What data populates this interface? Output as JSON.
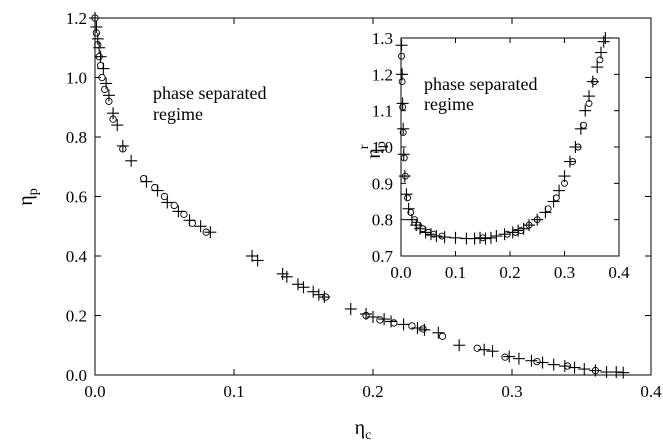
{
  "chart_data": [
    {
      "type": "scatter",
      "xlabel_main": "η",
      "xlabel_sub": "c",
      "ylabel_main": "η",
      "ylabel_sub": "p",
      "xlim": [
        0,
        0.4
      ],
      "ylim": [
        0,
        1.2
      ],
      "xticks": [
        "0.0",
        "0.1",
        "0.2",
        "0.3",
        "0.4"
      ],
      "yticks": [
        "0.0",
        "0.2",
        "0.4",
        "0.6",
        "0.8",
        "1.0",
        "1.2"
      ],
      "annotation_line1": "phase separated",
      "annotation_line2": "regime",
      "series": [
        {
          "marker": "plus",
          "points": [
            [
              0.0,
              1.2
            ],
            [
              0.001,
              1.17
            ],
            [
              0.002,
              1.13
            ],
            [
              0.003,
              1.1
            ],
            [
              0.004,
              1.07
            ],
            [
              0.006,
              1.03
            ],
            [
              0.008,
              0.98
            ],
            [
              0.01,
              0.94
            ],
            [
              0.013,
              0.88
            ],
            [
              0.016,
              0.84
            ],
            [
              0.02,
              0.77
            ],
            [
              0.026,
              0.72
            ],
            [
              0.037,
              0.65
            ],
            [
              0.045,
              0.62
            ],
            [
              0.052,
              0.58
            ],
            [
              0.06,
              0.55
            ],
            [
              0.068,
              0.52
            ],
            [
              0.076,
              0.5
            ],
            [
              0.083,
              0.48
            ],
            [
              0.113,
              0.4
            ],
            [
              0.117,
              0.385
            ],
            [
              0.135,
              0.34
            ],
            [
              0.138,
              0.33
            ],
            [
              0.146,
              0.305
            ],
            [
              0.15,
              0.295
            ],
            [
              0.157,
              0.28
            ],
            [
              0.161,
              0.27
            ],
            [
              0.165,
              0.262
            ],
            [
              0.184,
              0.222
            ],
            [
              0.195,
              0.205
            ],
            [
              0.2,
              0.195
            ],
            [
              0.208,
              0.188
            ],
            [
              0.213,
              0.18
            ],
            [
              0.222,
              0.17
            ],
            [
              0.232,
              0.158
            ],
            [
              0.237,
              0.152
            ],
            [
              0.247,
              0.142
            ],
            [
              0.262,
              0.1
            ],
            [
              0.28,
              0.085
            ],
            [
              0.286,
              0.08
            ],
            [
              0.298,
              0.062
            ],
            [
              0.305,
              0.055
            ],
            [
              0.314,
              0.048
            ],
            [
              0.322,
              0.042
            ],
            [
              0.33,
              0.035
            ],
            [
              0.338,
              0.03
            ],
            [
              0.345,
              0.025
            ],
            [
              0.352,
              0.02
            ],
            [
              0.36,
              0.015
            ],
            [
              0.368,
              0.01
            ],
            [
              0.375,
              0.01
            ],
            [
              0.38,
              0.008
            ]
          ]
        },
        {
          "marker": "circle",
          "points": [
            [
              0.0,
              1.2
            ],
            [
              0.001,
              1.15
            ],
            [
              0.002,
              1.11
            ],
            [
              0.003,
              1.07
            ],
            [
              0.004,
              1.04
            ],
            [
              0.005,
              1.0
            ],
            [
              0.007,
              0.96
            ],
            [
              0.01,
              0.92
            ],
            [
              0.013,
              0.86
            ],
            [
              0.02,
              0.76
            ],
            [
              0.035,
              0.66
            ],
            [
              0.043,
              0.63
            ],
            [
              0.05,
              0.6
            ],
            [
              0.057,
              0.57
            ],
            [
              0.064,
              0.54
            ],
            [
              0.07,
              0.51
            ],
            [
              0.08,
              0.48
            ],
            [
              0.166,
              0.262
            ],
            [
              0.195,
              0.2
            ],
            [
              0.205,
              0.185
            ],
            [
              0.215,
              0.175
            ],
            [
              0.228,
              0.165
            ],
            [
              0.236,
              0.155
            ],
            [
              0.25,
              0.13
            ],
            [
              0.275,
              0.09
            ],
            [
              0.295,
              0.06
            ],
            [
              0.318,
              0.045
            ],
            [
              0.34,
              0.03
            ],
            [
              0.36,
              0.015
            ]
          ]
        }
      ]
    },
    {
      "type": "scatter",
      "ylabel_main": "η",
      "ylabel_sub": "p",
      "ylabel_sup": "r",
      "xlim": [
        0,
        0.4
      ],
      "ylim": [
        0.7,
        1.3
      ],
      "xticks": [
        "0.0",
        "0.1",
        "0.2",
        "0.3",
        "0.4"
      ],
      "yticks": [
        "0.7",
        "0.8",
        "0.9",
        "1.0",
        "1.1",
        "1.2",
        "1.3"
      ],
      "annotation_line1": "phase separated",
      "annotation_line2": "regime",
      "series": [
        {
          "marker": "plus",
          "points": [
            [
              0.001,
              1.28
            ],
            [
              0.002,
              1.2
            ],
            [
              0.003,
              1.12
            ],
            [
              0.004,
              1.05
            ],
            [
              0.005,
              0.98
            ],
            [
              0.007,
              0.92
            ],
            [
              0.01,
              0.87
            ],
            [
              0.014,
              0.83
            ],
            [
              0.02,
              0.8
            ],
            [
              0.028,
              0.785
            ],
            [
              0.035,
              0.775
            ],
            [
              0.045,
              0.765
            ],
            [
              0.055,
              0.76
            ],
            [
              0.065,
              0.755
            ],
            [
              0.08,
              0.752
            ],
            [
              0.1,
              0.75
            ],
            [
              0.12,
              0.748
            ],
            [
              0.135,
              0.748
            ],
            [
              0.145,
              0.75
            ],
            [
              0.155,
              0.748
            ],
            [
              0.165,
              0.75
            ],
            [
              0.175,
              0.755
            ],
            [
              0.19,
              0.76
            ],
            [
              0.205,
              0.765
            ],
            [
              0.215,
              0.77
            ],
            [
              0.225,
              0.775
            ],
            [
              0.235,
              0.785
            ],
            [
              0.25,
              0.8
            ],
            [
              0.265,
              0.82
            ],
            [
              0.28,
              0.85
            ],
            [
              0.29,
              0.88
            ],
            [
              0.3,
              0.92
            ],
            [
              0.31,
              0.96
            ],
            [
              0.32,
              1.0
            ],
            [
              0.33,
              1.05
            ],
            [
              0.338,
              1.1
            ],
            [
              0.345,
              1.14
            ],
            [
              0.352,
              1.18
            ],
            [
              0.36,
              1.22
            ],
            [
              0.367,
              1.26
            ],
            [
              0.372,
              1.29
            ],
            [
              0.375,
              1.3
            ]
          ]
        },
        {
          "marker": "circle",
          "points": [
            [
              0.001,
              1.25
            ],
            [
              0.002,
              1.18
            ],
            [
              0.003,
              1.11
            ],
            [
              0.004,
              1.04
            ],
            [
              0.006,
              0.97
            ],
            [
              0.008,
              0.92
            ],
            [
              0.012,
              0.86
            ],
            [
              0.018,
              0.82
            ],
            [
              0.025,
              0.8
            ],
            [
              0.032,
              0.785
            ],
            [
              0.04,
              0.775
            ],
            [
              0.05,
              0.765
            ],
            [
              0.06,
              0.76
            ],
            [
              0.075,
              0.755
            ],
            [
              0.15,
              0.75
            ],
            [
              0.195,
              0.76
            ],
            [
              0.21,
              0.765
            ],
            [
              0.22,
              0.77
            ],
            [
              0.235,
              0.785
            ],
            [
              0.25,
              0.8
            ],
            [
              0.27,
              0.83
            ],
            [
              0.285,
              0.86
            ],
            [
              0.3,
              0.9
            ],
            [
              0.315,
              0.96
            ],
            [
              0.325,
              1.0
            ],
            [
              0.335,
              1.06
            ],
            [
              0.345,
              1.12
            ],
            [
              0.355,
              1.18
            ],
            [
              0.365,
              1.24
            ]
          ]
        }
      ]
    }
  ]
}
